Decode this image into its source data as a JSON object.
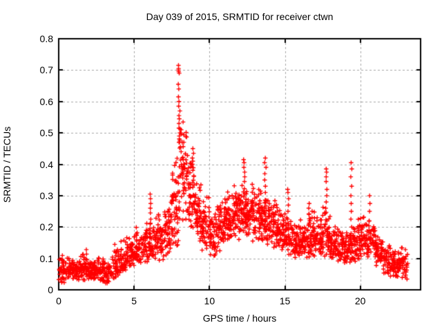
{
  "title": "Day 039 of 2015, SRMTID for receiver ctwn",
  "chart_data": {
    "type": "scatter",
    "title": "Day 039 of 2015, SRMTID for receiver ctwn",
    "xlabel": "GPS time / hours",
    "ylabel": "SRMTID / TECUs",
    "xlim": [
      0,
      24
    ],
    "ylim": [
      0,
      0.8
    ],
    "xticks": [
      [
        0,
        "0"
      ],
      [
        5,
        "5"
      ],
      [
        10,
        "10"
      ],
      [
        15,
        "15"
      ],
      [
        20,
        "20"
      ]
    ],
    "yticks": [
      [
        0,
        "0"
      ],
      [
        0.1,
        "0.1"
      ],
      [
        0.2,
        "0.2"
      ],
      [
        0.3,
        "0.3"
      ],
      [
        0.4,
        "0.4"
      ],
      [
        0.5,
        "0.5"
      ],
      [
        0.6,
        "0.6"
      ],
      [
        0.7,
        "0.7"
      ],
      [
        0.8,
        "0.8"
      ]
    ],
    "grid": true,
    "legend": "none",
    "marker": "plus",
    "marker_color": "#ff0000",
    "grid_color": "#a6a6a6",
    "axis_color": "#000000",
    "background_color": "#ffffff",
    "x_data_range": [
      0,
      23.15
    ],
    "peak": {
      "x": 8.0,
      "y": 0.72
    },
    "seed": 20150039,
    "bands_format": "[t_start, t_end, y_min, y_max, n_points, skew] — envelope of the dense point cloud per time interval; points concentrate toward y_min for skew>1",
    "bands": [
      [
        0.0,
        0.5,
        0.02,
        0.13,
        40,
        1.35
      ],
      [
        0.5,
        1.0,
        0.03,
        0.11,
        42,
        1.3
      ],
      [
        1.0,
        1.5,
        0.03,
        0.12,
        42,
        1.3
      ],
      [
        1.5,
        2.0,
        0.03,
        0.13,
        45,
        1.3
      ],
      [
        2.0,
        2.5,
        0.03,
        0.11,
        45,
        1.3
      ],
      [
        2.5,
        3.0,
        0.02,
        0.12,
        42,
        1.3
      ],
      [
        3.0,
        3.5,
        0.015,
        0.09,
        40,
        1.2
      ],
      [
        3.5,
        4.0,
        0.03,
        0.15,
        40,
        1.3
      ],
      [
        4.0,
        4.5,
        0.05,
        0.17,
        42,
        1.3
      ],
      [
        4.5,
        5.0,
        0.07,
        0.18,
        44,
        1.3
      ],
      [
        5.0,
        5.5,
        0.08,
        0.21,
        45,
        1.25
      ],
      [
        5.5,
        6.0,
        0.08,
        0.24,
        46,
        1.25
      ],
      [
        6.0,
        6.5,
        0.09,
        0.23,
        46,
        1.25
      ],
      [
        6.5,
        7.0,
        0.09,
        0.26,
        48,
        1.25
      ],
      [
        7.0,
        7.5,
        0.1,
        0.3,
        50,
        1.2
      ],
      [
        7.5,
        8.0,
        0.13,
        0.44,
        55,
        1.1
      ],
      [
        8.0,
        8.5,
        0.2,
        0.56,
        58,
        0.95
      ],
      [
        8.5,
        9.0,
        0.17,
        0.44,
        54,
        1.1
      ],
      [
        9.0,
        9.5,
        0.14,
        0.36,
        50,
        1.15
      ],
      [
        9.5,
        10.0,
        0.12,
        0.3,
        48,
        1.2
      ],
      [
        10.0,
        10.5,
        0.1,
        0.26,
        48,
        1.2
      ],
      [
        10.5,
        11.0,
        0.12,
        0.3,
        50,
        1.15
      ],
      [
        11.0,
        11.5,
        0.14,
        0.33,
        52,
        1.1
      ],
      [
        11.5,
        12.0,
        0.15,
        0.35,
        55,
        1.1
      ],
      [
        12.0,
        12.5,
        0.15,
        0.35,
        55,
        1.1
      ],
      [
        12.5,
        13.0,
        0.15,
        0.34,
        55,
        1.1
      ],
      [
        13.0,
        13.5,
        0.14,
        0.33,
        52,
        1.1
      ],
      [
        13.5,
        14.0,
        0.14,
        0.32,
        50,
        1.15
      ],
      [
        14.0,
        14.5,
        0.13,
        0.3,
        50,
        1.15
      ],
      [
        14.5,
        15.0,
        0.12,
        0.27,
        48,
        1.2
      ],
      [
        15.0,
        15.5,
        0.11,
        0.26,
        48,
        1.2
      ],
      [
        15.5,
        16.0,
        0.1,
        0.22,
        48,
        1.25
      ],
      [
        16.0,
        16.5,
        0.1,
        0.23,
        48,
        1.25
      ],
      [
        16.5,
        17.0,
        0.1,
        0.26,
        48,
        1.25
      ],
      [
        17.0,
        17.5,
        0.1,
        0.24,
        48,
        1.25
      ],
      [
        17.5,
        18.0,
        0.1,
        0.27,
        48,
        1.25
      ],
      [
        18.0,
        18.5,
        0.09,
        0.22,
        48,
        1.3
      ],
      [
        18.5,
        19.0,
        0.08,
        0.2,
        46,
        1.3
      ],
      [
        19.0,
        19.5,
        0.08,
        0.2,
        46,
        1.3
      ],
      [
        19.5,
        20.0,
        0.09,
        0.24,
        46,
        1.3
      ],
      [
        20.0,
        20.5,
        0.1,
        0.25,
        46,
        1.25
      ],
      [
        20.5,
        21.0,
        0.1,
        0.24,
        46,
        1.25
      ],
      [
        21.0,
        21.5,
        0.07,
        0.19,
        44,
        1.3
      ],
      [
        21.5,
        22.0,
        0.05,
        0.16,
        42,
        1.3
      ],
      [
        22.0,
        22.5,
        0.04,
        0.15,
        42,
        1.3
      ],
      [
        22.5,
        23.0,
        0.035,
        0.14,
        40,
        1.3
      ],
      [
        23.0,
        23.15,
        0.03,
        0.12,
        10,
        1.3
      ]
    ],
    "spikes_format": "[t, [y values]] — distinct vertical streaks of outlier points",
    "spikes": [
      [
        6.08,
        [
          0.15,
          0.165,
          0.18,
          0.195,
          0.21,
          0.225,
          0.245,
          0.26,
          0.275,
          0.29,
          0.305
        ]
      ],
      [
        7.95,
        [
          0.585,
          0.6,
          0.615,
          0.64,
          0.655,
          0.69,
          0.695,
          0.7,
          0.705,
          0.715
        ]
      ],
      [
        8.02,
        [
          0.455,
          0.47,
          0.49,
          0.5,
          0.515,
          0.53,
          0.545,
          0.555,
          0.57
        ]
      ],
      [
        8.15,
        [
          0.42,
          0.44,
          0.47,
          0.5
        ]
      ],
      [
        8.9,
        [
          0.4,
          0.41,
          0.42,
          0.435,
          0.45
        ]
      ],
      [
        12.3,
        [
          0.345,
          0.36,
          0.375,
          0.39,
          0.405,
          0.415
        ]
      ],
      [
        13.7,
        [
          0.26,
          0.285,
          0.31,
          0.33,
          0.35,
          0.37,
          0.39,
          0.405,
          0.42
        ]
      ],
      [
        15.2,
        [
          0.25,
          0.27,
          0.29,
          0.31,
          0.32
        ]
      ],
      [
        16.6,
        [
          0.22,
          0.24,
          0.26,
          0.275
        ]
      ],
      [
        16.85,
        [
          0.2,
          0.23,
          0.25
        ]
      ],
      [
        17.75,
        [
          0.26,
          0.28,
          0.3,
          0.32,
          0.345,
          0.36,
          0.375,
          0.385
        ]
      ],
      [
        19.4,
        [
          0.14,
          0.16,
          0.18,
          0.2,
          0.225,
          0.25,
          0.275,
          0.3,
          0.33,
          0.36,
          0.385,
          0.405
        ]
      ],
      [
        20.6,
        [
          0.14,
          0.165,
          0.19,
          0.22,
          0.25,
          0.275,
          0.3
        ]
      ]
    ]
  }
}
